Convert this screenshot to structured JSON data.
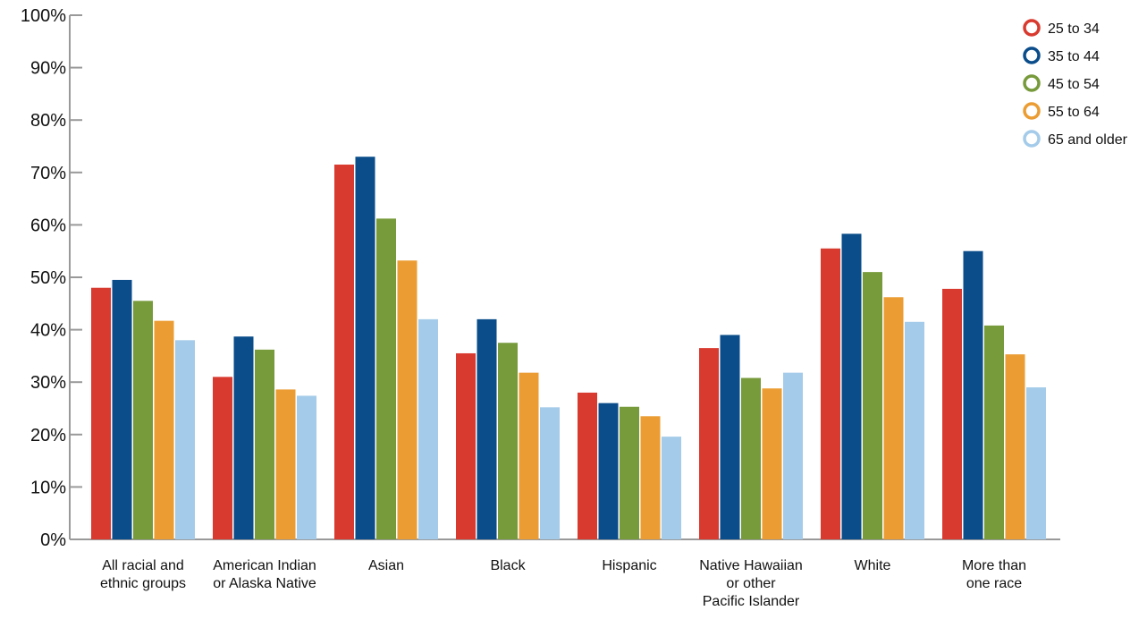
{
  "chart_data": {
    "type": "bar",
    "categories": [
      [
        "All racial and",
        "ethnic groups"
      ],
      [
        "American Indian",
        "or Alaska Native"
      ],
      [
        "Asian"
      ],
      [
        "Black"
      ],
      [
        "Hispanic"
      ],
      [
        "Native Hawaiian",
        "or other",
        "Pacific Islander"
      ],
      [
        "White"
      ],
      [
        "More than",
        "one race"
      ]
    ],
    "series": [
      {
        "name": "25 to 34",
        "color": "#d93a2f",
        "values": [
          48,
          31,
          71.5,
          35.5,
          28,
          36.5,
          55.5,
          47.8
        ]
      },
      {
        "name": "35 to 44",
        "color": "#0a4d8a",
        "values": [
          49.5,
          38.7,
          73,
          42,
          26,
          39,
          58.3,
          55
        ]
      },
      {
        "name": "45 to 54",
        "color": "#779a3b",
        "values": [
          45.5,
          36.2,
          61.2,
          37.5,
          25.3,
          30.8,
          51,
          40.8
        ]
      },
      {
        "name": "55 to 64",
        "color": "#eb9d33",
        "values": [
          41.7,
          28.6,
          53.2,
          31.8,
          23.5,
          28.8,
          46.2,
          35.3
        ]
      },
      {
        "name": "65 and older",
        "color": "#a4cbe9",
        "values": [
          38,
          27.4,
          42,
          25.2,
          19.6,
          31.8,
          41.5,
          29
        ]
      }
    ],
    "yticks": [
      "0%",
      "10%",
      "20%",
      "30%",
      "40%",
      "50%",
      "60%",
      "70%",
      "80%",
      "90%",
      "100%"
    ],
    "ylim": [
      0,
      100
    ],
    "legend_position": "top-right",
    "grid": false
  }
}
